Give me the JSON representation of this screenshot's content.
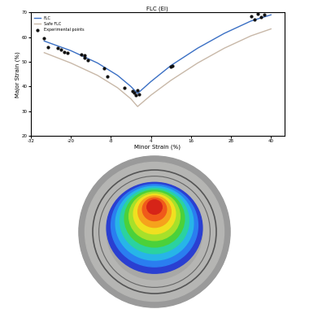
{
  "chart_data": {
    "type": "line",
    "title": "FLC (EI)",
    "x_label": "Minor Strain (%)",
    "y_label": "Major Strain (%)",
    "xlim": [
      -32,
      44
    ],
    "xticks": [
      -32,
      -20,
      -8,
      4,
      16,
      28,
      40
    ],
    "ylim": [
      20,
      70
    ],
    "yticks": [
      20,
      30,
      40,
      50,
      60,
      70
    ],
    "grid": false,
    "legend": "upper left",
    "series": [
      {
        "name": "FLC",
        "type": "line",
        "color": "#3a6fc4",
        "line_style": "solid",
        "x": [
          -28,
          -20,
          -12,
          -6,
          -2,
          0,
          4,
          10,
          18,
          26,
          34,
          40
        ],
        "values": [
          58.4,
          54.5,
          49.5,
          44.5,
          40.0,
          37.2,
          42.0,
          48.5,
          55.5,
          61.5,
          66.5,
          69.0
        ]
      },
      {
        "name": "Safe FLC",
        "type": "line",
        "color": "#c8b8a8",
        "line_style": "solid",
        "x": [
          -28,
          -20,
          -12,
          -6,
          -2,
          0,
          4,
          10,
          18,
          26,
          34,
          40
        ],
        "values": [
          53.7,
          49.5,
          44.5,
          39.5,
          35.0,
          31.9,
          36.5,
          42.5,
          49.5,
          55.5,
          60.5,
          63.3
        ]
      },
      {
        "name": "Experimental points",
        "type": "scatter",
        "color": "#111111",
        "marker": "o",
        "x": [
          -28,
          -27,
          -24,
          -23,
          -22,
          -21,
          -17,
          -16,
          -16,
          -15,
          -10,
          -9,
          -4,
          -1.5,
          -1,
          -0.5,
          0,
          0.5,
          10,
          10.5,
          34,
          35,
          36,
          37,
          38
        ],
        "values": [
          59.5,
          56.0,
          55.5,
          55.0,
          54.0,
          53.5,
          53.0,
          52.5,
          51.5,
          50.5,
          47.5,
          44.0,
          39.5,
          38.0,
          37.5,
          36.5,
          38.5,
          37.0,
          48.0,
          48.5,
          68.5,
          67.0,
          69.5,
          68.0,
          69.0
        ]
      }
    ]
  }
}
